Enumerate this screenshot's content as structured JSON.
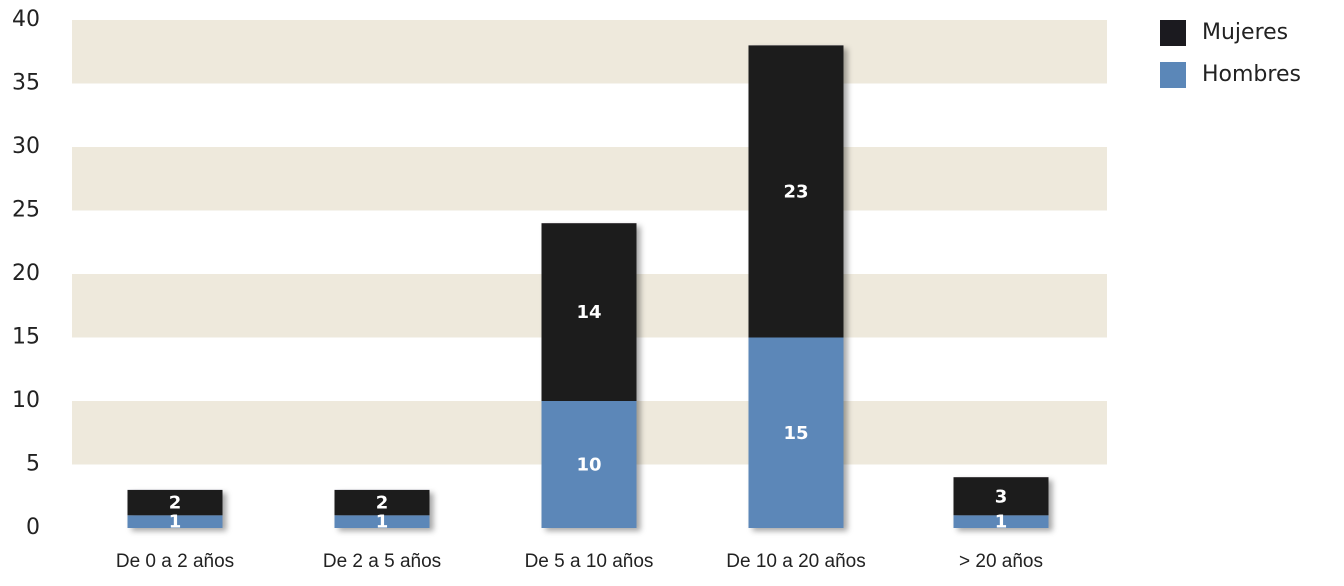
{
  "chart_data": {
    "type": "stacked_bar",
    "categories": [
      "De 0 a 2 años",
      "De 2 a 5 años",
      "De 5 a 10 años",
      "De 10 a 20 años",
      "> 20 años"
    ],
    "series": [
      {
        "name": "Hombres",
        "color": "#5b87b8",
        "values": [
          1,
          1,
          10,
          15,
          1
        ]
      },
      {
        "name": "Mujeres",
        "color": "#1b1a1f",
        "values": [
          2,
          2,
          14,
          23,
          3
        ]
      }
    ],
    "ylim": [
      0,
      40
    ],
    "yticks": [
      0,
      5,
      10,
      15,
      20,
      25,
      30,
      35,
      40
    ],
    "band_color": "#eee9dc",
    "legend": "top-right"
  }
}
